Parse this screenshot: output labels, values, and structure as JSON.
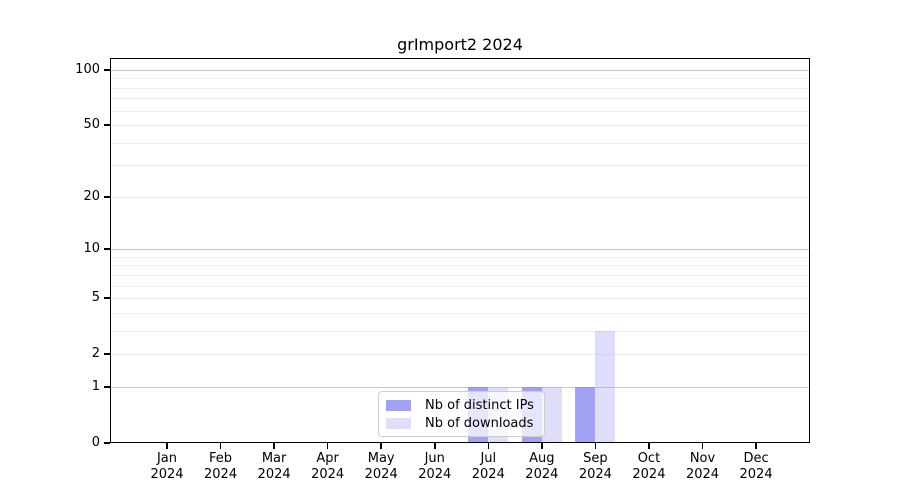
{
  "chart_data": {
    "type": "bar",
    "title": "grImport2 2024",
    "categories": [
      "Jan",
      "Feb",
      "Mar",
      "Apr",
      "May",
      "Jun",
      "Jul",
      "Aug",
      "Sep",
      "Oct",
      "Nov",
      "Dec"
    ],
    "year_label": "2024",
    "series": [
      {
        "name": "Nb of distinct IPs",
        "color": "#7d7df2",
        "alpha": 0.72,
        "values": [
          0,
          0,
          0,
          0,
          0,
          0,
          1,
          1,
          1,
          0,
          0,
          0
        ]
      },
      {
        "name": "Nb of downloads",
        "color": "#a0a0f0",
        "alpha": 0.35,
        "values": [
          0,
          0,
          0,
          0,
          0,
          0,
          1,
          1,
          3,
          0,
          0,
          0
        ]
      }
    ],
    "xlabel": "",
    "ylabel": "",
    "yscale": "log1p",
    "ylim": [
      0,
      100
    ],
    "yticks": [
      0,
      1,
      2,
      5,
      10,
      20,
      50,
      100
    ],
    "major_gridlines": [
      1,
      10,
      100
    ],
    "minor_gridlines": [
      2,
      3,
      4,
      5,
      6,
      7,
      8,
      9,
      20,
      30,
      40,
      50,
      60,
      70,
      80,
      90
    ],
    "grid": true,
    "legend_position": "inside-bottom-center",
    "colors": {
      "frame": "#000000",
      "major_grid": "#c8c8c8",
      "minor_grid": "#ededed",
      "text": "#000000",
      "legend_border": "#cccccc"
    }
  }
}
